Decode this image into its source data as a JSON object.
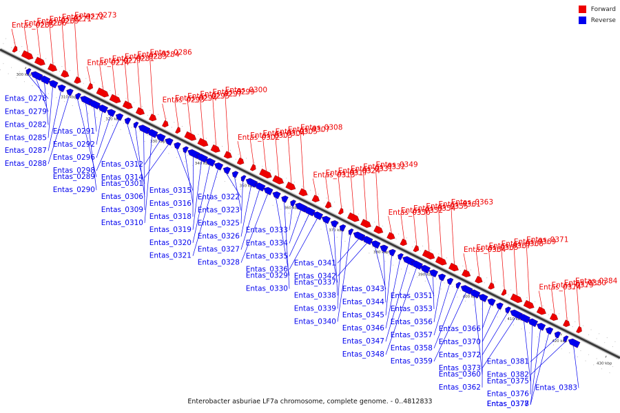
{
  "legend": {
    "forward_label": "Forward",
    "reverse_label": "Reverse",
    "forward_color": "#ee0000",
    "reverse_color": "#0000ee"
  },
  "caption": "Enterobacter asburiae LF7a chromosome, complete genome. - 0..4812833",
  "ticks": [
    "300 kbp",
    "310 kbp",
    "320 kbp",
    "330 kbp",
    "340 kbp",
    "350 kbp",
    "360 kbp",
    "370 kbp",
    "380 kbp",
    "390 kbp",
    "400 kbp",
    "410 kbp",
    "420 kbp",
    "430 kbp"
  ],
  "forward_genes": [
    "Entas_0265",
    "Entas_0266",
    "Entas_0269",
    "Entas_0271",
    "Entas_0272",
    "Entas_0273",
    "Entas_0274",
    "Entas_0277",
    "Entas_0281",
    "Entas_0283",
    "Entas_0284",
    "Entas_0286",
    "Entas_0293",
    "Entas_0294",
    "Entas_0295",
    "Entas_0297",
    "Entas_0299",
    "Entas_0300",
    "Entas_0302",
    "Entas_0303",
    "Entas_0304",
    "Entas_0305",
    "Entas_0307",
    "Entas_0308",
    "Entas_0313",
    "Entas_0317",
    "Entas_0324",
    "Entas_0331",
    "Entas_0332",
    "Entas_0349",
    "Entas_0350",
    "Entas_0352",
    "Entas_0354",
    "Entas_0355",
    "Entas_0361",
    "Entas_0363",
    "Entas_0364",
    "Entas_0365",
    "Entas_0367",
    "Entas_0368",
    "Entas_0369",
    "Entas_0371",
    "Entas_0374",
    "Entas_0379",
    "Entas_0380",
    "Entas_0384"
  ],
  "reverse_genes": [
    "Entas_0278",
    "Entas_0279",
    "Entas_0282",
    "Entas_0285",
    "Entas_0287",
    "Entas_0288",
    "Entas_0289",
    "Entas_0290",
    "Entas_0291",
    "Entas_0292",
    "Entas_0296",
    "Entas_0298",
    "Entas_0301",
    "Entas_0306",
    "Entas_0309",
    "Entas_0310",
    "Entas_0312",
    "Entas_0314",
    "Entas_0315",
    "Entas_0316",
    "Entas_0318",
    "Entas_0319",
    "Entas_0320",
    "Entas_0321",
    "Entas_0322",
    "Entas_0323",
    "Entas_0325",
    "Entas_0326",
    "Entas_0327",
    "Entas_0328",
    "Entas_0329",
    "Entas_0330",
    "Entas_0333",
    "Entas_0334",
    "Entas_0335",
    "Entas_0336",
    "Entas_0337",
    "Entas_0338",
    "Entas_0339",
    "Entas_0340",
    "Entas_0341",
    "Entas_0342",
    "Entas_0343",
    "Entas_0344",
    "Entas_0345",
    "Entas_0346",
    "Entas_0347",
    "Entas_0348",
    "Entas_0351",
    "Entas_0353",
    "Entas_0356",
    "Entas_0357",
    "Entas_0358",
    "Entas_0359",
    "Entas_0360",
    "Entas_0362",
    "Entas_0366",
    "Entas_0370",
    "Entas_0372",
    "Entas_0373",
    "Entas_0375",
    "Entas_0376",
    "Entas_0377",
    "Entas_0378",
    "Entas_0381",
    "Entas_0382",
    "Entas_0383"
  ]
}
